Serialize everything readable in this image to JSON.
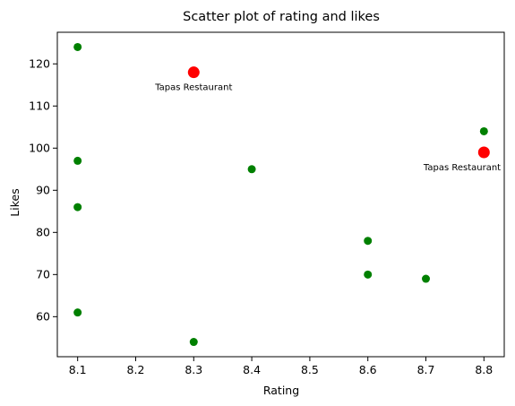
{
  "chart_data": {
    "type": "scatter",
    "title": "Scatter plot of rating and likes",
    "xlabel": "Rating",
    "ylabel": "Likes",
    "xlim": [
      8.065,
      8.835
    ],
    "ylim": [
      50.5,
      127.5
    ],
    "xticks": [
      8.1,
      8.2,
      8.3,
      8.4,
      8.5,
      8.6,
      8.7,
      8.8
    ],
    "xtick_labels": [
      "8.1",
      "8.2",
      "8.3",
      "8.4",
      "8.5",
      "8.6",
      "8.7",
      "8.8"
    ],
    "yticks": [
      60,
      70,
      80,
      90,
      100,
      110,
      120
    ],
    "ytick_labels": [
      "60",
      "70",
      "80",
      "90",
      "100",
      "110",
      "120"
    ],
    "grid": false,
    "colors": {
      "normal_point": "#008000",
      "highlight_point": "#ff0000",
      "axis": "#000000"
    },
    "series": [
      {
        "points": [
          {
            "x": 8.1,
            "y": 124
          },
          {
            "x": 8.1,
            "y": 97
          },
          {
            "x": 8.1,
            "y": 86
          },
          {
            "x": 8.1,
            "y": 61
          },
          {
            "x": 8.3,
            "y": 54
          },
          {
            "x": 8.4,
            "y": 95
          },
          {
            "x": 8.6,
            "y": 78
          },
          {
            "x": 8.6,
            "y": 70
          },
          {
            "x": 8.7,
            "y": 69
          },
          {
            "x": 8.8,
            "y": 104
          }
        ]
      },
      {
        "points": [
          {
            "x": 8.3,
            "y": 118,
            "label": "Tapas Restaurant"
          },
          {
            "x": 8.8,
            "y": 99,
            "label": "Tapas Restaurant"
          }
        ]
      }
    ]
  }
}
